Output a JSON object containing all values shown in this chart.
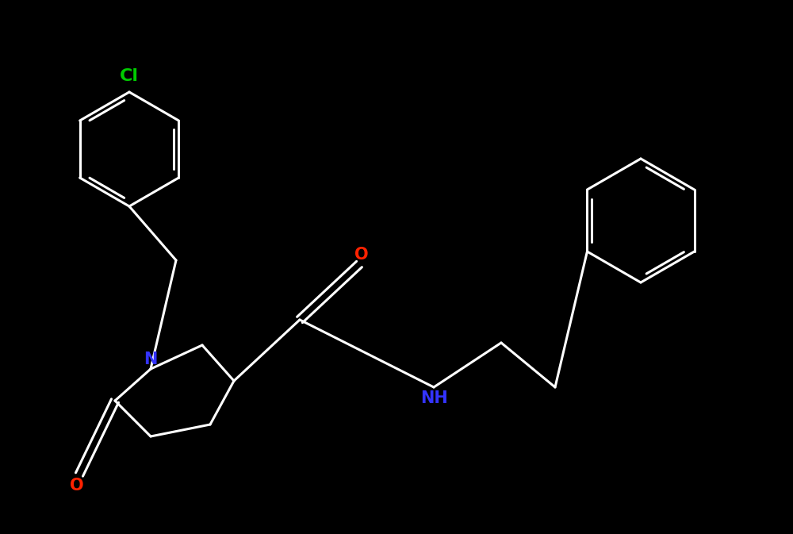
{
  "bg_color": "#000000",
  "bond_color": "#ffffff",
  "bond_width": 2.2,
  "Cl_color": "#00cc00",
  "N_color": "#3333ff",
  "O_color": "#ff2200",
  "font_size": 15,
  "fig_width": 10.0,
  "fig_height": 6.73,
  "xlim": [
    0,
    1000
  ],
  "ylim": [
    0,
    673
  ]
}
